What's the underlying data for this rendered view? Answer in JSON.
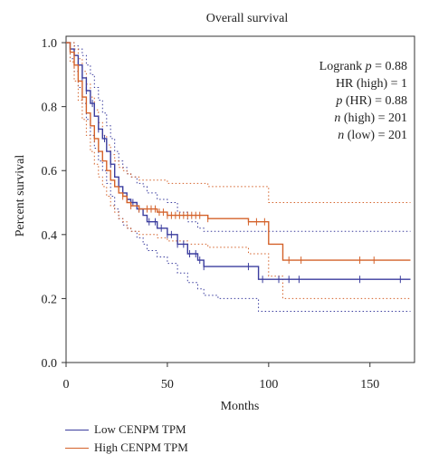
{
  "chart_data": {
    "type": "line",
    "title": "Overall survival",
    "xlabel": "Months",
    "ylabel": "Percent survival",
    "xlim": [
      0,
      172
    ],
    "ylim": [
      0,
      1.02
    ],
    "x_ticks": [
      "0",
      "50",
      "100",
      "150"
    ],
    "y_ticks": [
      "0.0",
      "0.2",
      "0.4",
      "0.6",
      "0.8",
      "1.0"
    ],
    "annotations": [
      {
        "prefix": "Logrank ",
        "italic": "p",
        "suffix": " = 0.88"
      },
      {
        "prefix": "",
        "italic": "",
        "suffix": "HR (high) = 1"
      },
      {
        "prefix": "",
        "italic": "p",
        "suffix": " (HR) = 0.88"
      },
      {
        "prefix": "",
        "italic": "n",
        "suffix": " (high) = 201"
      },
      {
        "prefix": "",
        "italic": "n",
        "suffix": " (low) = 201"
      }
    ],
    "series": [
      {
        "name": "Low CENPM TPM",
        "color": "#3b3d9e",
        "x": [
          0,
          2,
          4,
          6,
          8,
          10,
          12,
          14,
          16,
          18,
          20,
          22,
          24,
          26,
          28,
          30,
          32,
          35,
          38,
          40,
          45,
          50,
          55,
          60,
          65,
          68,
          75,
          85,
          95,
          170
        ],
        "y": [
          1.0,
          0.98,
          0.96,
          0.93,
          0.89,
          0.85,
          0.81,
          0.77,
          0.73,
          0.7,
          0.66,
          0.62,
          0.58,
          0.55,
          0.53,
          0.51,
          0.5,
          0.48,
          0.46,
          0.44,
          0.42,
          0.4,
          0.37,
          0.34,
          0.32,
          0.3,
          0.3,
          0.3,
          0.26,
          0.26
        ],
        "ci_upper": [
          1.0,
          1.0,
          0.99,
          0.98,
          0.96,
          0.93,
          0.9,
          0.86,
          0.82,
          0.78,
          0.74,
          0.7,
          0.66,
          0.63,
          0.61,
          0.59,
          0.58,
          0.56,
          0.55,
          0.53,
          0.51,
          0.5,
          0.47,
          0.44,
          0.42,
          0.41,
          0.41,
          0.41,
          0.41,
          0.41
        ],
        "ci_lower": [
          1.0,
          0.95,
          0.91,
          0.86,
          0.81,
          0.76,
          0.71,
          0.67,
          0.63,
          0.6,
          0.56,
          0.52,
          0.48,
          0.45,
          0.43,
          0.42,
          0.41,
          0.39,
          0.37,
          0.35,
          0.33,
          0.31,
          0.28,
          0.25,
          0.23,
          0.21,
          0.2,
          0.2,
          0.16,
          0.16
        ],
        "censor_x": [
          6,
          8,
          10,
          13,
          16,
          19,
          22,
          30,
          33,
          36,
          41,
          44,
          47,
          50,
          52,
          55,
          58,
          61,
          64,
          66,
          68,
          90,
          97,
          105,
          110,
          115,
          145,
          165
        ]
      },
      {
        "name": "High CENPM TPM",
        "color": "#d4622a",
        "x": [
          0,
          2,
          4,
          6,
          8,
          10,
          12,
          14,
          16,
          18,
          20,
          22,
          24,
          26,
          28,
          30,
          32,
          34,
          36,
          40,
          45,
          50,
          60,
          70,
          80,
          90,
          100,
          107,
          170
        ],
        "y": [
          1.0,
          0.97,
          0.93,
          0.88,
          0.83,
          0.78,
          0.74,
          0.7,
          0.66,
          0.63,
          0.6,
          0.57,
          0.55,
          0.53,
          0.52,
          0.5,
          0.49,
          0.49,
          0.48,
          0.48,
          0.47,
          0.46,
          0.46,
          0.45,
          0.45,
          0.44,
          0.37,
          0.32,
          0.32
        ],
        "ci_upper": [
          1.0,
          1.0,
          0.98,
          0.95,
          0.91,
          0.87,
          0.83,
          0.79,
          0.75,
          0.71,
          0.68,
          0.65,
          0.63,
          0.61,
          0.6,
          0.59,
          0.58,
          0.58,
          0.57,
          0.57,
          0.57,
          0.56,
          0.56,
          0.55,
          0.55,
          0.55,
          0.5,
          0.5,
          0.5
        ],
        "ci_lower": [
          1.0,
          0.94,
          0.88,
          0.82,
          0.76,
          0.71,
          0.66,
          0.62,
          0.58,
          0.55,
          0.52,
          0.49,
          0.47,
          0.45,
          0.44,
          0.42,
          0.41,
          0.41,
          0.4,
          0.4,
          0.39,
          0.38,
          0.37,
          0.36,
          0.36,
          0.34,
          0.27,
          0.2,
          0.2
        ],
        "censor_x": [
          4,
          8,
          14,
          28,
          32,
          36,
          40,
          42,
          44,
          46,
          48,
          50,
          52,
          54,
          56,
          58,
          60,
          62,
          64,
          66,
          70,
          90,
          94,
          98,
          110,
          116,
          145,
          152
        ]
      }
    ]
  }
}
